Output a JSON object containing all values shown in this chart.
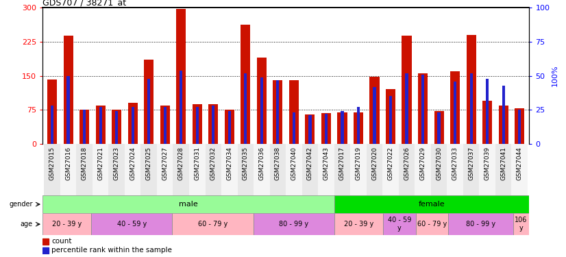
{
  "title": "GDS707 / 38271_at",
  "samples": [
    "GSM27015",
    "GSM27016",
    "GSM27018",
    "GSM27021",
    "GSM27023",
    "GSM27024",
    "GSM27025",
    "GSM27027",
    "GSM27028",
    "GSM27031",
    "GSM27032",
    "GSM27034",
    "GSM27035",
    "GSM27036",
    "GSM27038",
    "GSM27040",
    "GSM27042",
    "GSM27043",
    "GSM27017",
    "GSM27019",
    "GSM27020",
    "GSM27022",
    "GSM27026",
    "GSM27029",
    "GSM27030",
    "GSM27033",
    "GSM27037",
    "GSM27039",
    "GSM27041",
    "GSM27044"
  ],
  "counts": [
    142,
    238,
    75,
    85,
    75,
    90,
    185,
    85,
    298,
    88,
    88,
    75,
    262,
    190,
    140,
    140,
    65,
    68,
    70,
    70,
    148,
    120,
    238,
    155,
    72,
    160,
    240,
    95,
    85,
    78
  ],
  "percentile_ranks": [
    28,
    50,
    25,
    27,
    24,
    27,
    48,
    27,
    54,
    27,
    28,
    24,
    52,
    49,
    47,
    23,
    21,
    22,
    24,
    27,
    42,
    35,
    52,
    51,
    23,
    46,
    52,
    48,
    43,
    25
  ],
  "gender_groups": [
    {
      "label": "male",
      "start": 0,
      "end": 18,
      "color": "#98FB98"
    },
    {
      "label": "female",
      "start": 18,
      "end": 30,
      "color": "#00DD00"
    }
  ],
  "age_groups": [
    {
      "label": "20 - 39 y",
      "start": 0,
      "end": 3,
      "color": "#FFB6C1"
    },
    {
      "label": "40 - 59 y",
      "start": 3,
      "end": 8,
      "color": "#DD88DD"
    },
    {
      "label": "60 - 79 y",
      "start": 8,
      "end": 13,
      "color": "#FFB6C1"
    },
    {
      "label": "80 - 99 y",
      "start": 13,
      "end": 18,
      "color": "#DD88DD"
    },
    {
      "label": "20 - 39 y",
      "start": 18,
      "end": 21,
      "color": "#FFB6C1"
    },
    {
      "label": "40 - 59\ny",
      "start": 21,
      "end": 23,
      "color": "#DD88DD"
    },
    {
      "label": "60 - 79 y",
      "start": 23,
      "end": 25,
      "color": "#FFB6C1"
    },
    {
      "label": "80 - 99 y",
      "start": 25,
      "end": 29,
      "color": "#DD88DD"
    },
    {
      "label": "106\ny",
      "start": 29,
      "end": 30,
      "color": "#FFB6C1"
    }
  ],
  "bar_color": "#CC1100",
  "blue_color": "#2222CC",
  "left_ylim": [
    0,
    300
  ],
  "right_ylim": [
    0,
    100
  ],
  "left_yticks": [
    0,
    75,
    150,
    225,
    300
  ],
  "right_yticks": [
    0,
    25,
    50,
    75,
    100
  ],
  "grid_lines": [
    75,
    150,
    225
  ],
  "bar_width": 0.6,
  "blue_bar_width": 0.18,
  "blue_bar_thickness": 8
}
